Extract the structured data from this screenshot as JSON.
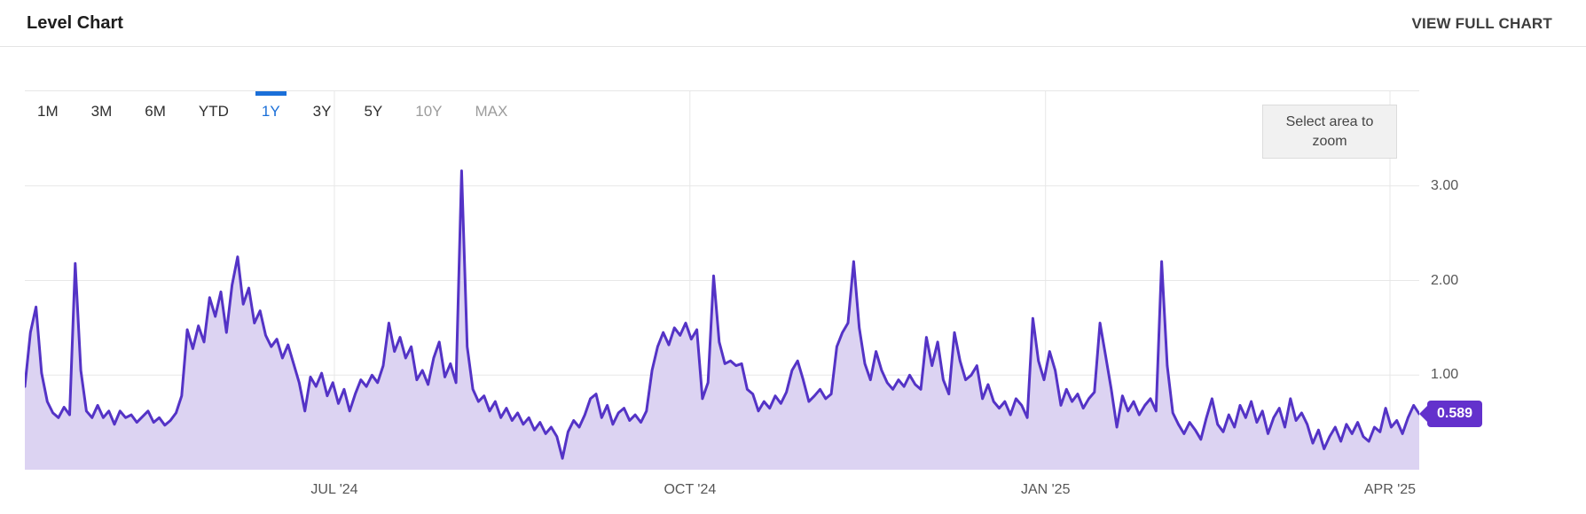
{
  "header": {
    "title": "Level Chart",
    "view_full_chart": "VIEW FULL CHART"
  },
  "chart": {
    "range_buttons": [
      {
        "label": "1M",
        "state": "default"
      },
      {
        "label": "3M",
        "state": "default"
      },
      {
        "label": "6M",
        "state": "default"
      },
      {
        "label": "YTD",
        "state": "default"
      },
      {
        "label": "1Y",
        "state": "active"
      },
      {
        "label": "3Y",
        "state": "default"
      },
      {
        "label": "5Y",
        "state": "default"
      },
      {
        "label": "10Y",
        "state": "disabled"
      },
      {
        "label": "MAX",
        "state": "disabled"
      }
    ],
    "zoom_hint": "Select area to zoom",
    "last_value_label": "0.589",
    "colors": {
      "line": "#5433c6",
      "fill": "#dcd3f2",
      "badge": "#6331cc",
      "active_range": "#1a6fd8",
      "gridline": "#e7e7e7"
    }
  },
  "chart_data": {
    "type": "area",
    "title": "Level Chart",
    "legend": [],
    "grid": true,
    "y_axis": {
      "range": [
        0,
        4
      ],
      "ticks": [
        {
          "label": "3.00",
          "value": 3
        },
        {
          "label": "2.00",
          "value": 2
        },
        {
          "label": "1.00",
          "value": 1
        }
      ]
    },
    "x_axis": {
      "labels": [
        {
          "label": "JUL '24",
          "pos": 0.222
        },
        {
          "label": "OCT '24",
          "pos": 0.477
        },
        {
          "label": "JAN '25",
          "pos": 0.732
        },
        {
          "label": "APR '25",
          "pos": 0.979
        }
      ]
    },
    "last_value": 0.589,
    "values": [
      0.88,
      1.45,
      1.72,
      1.02,
      0.72,
      0.6,
      0.55,
      0.66,
      0.58,
      2.18,
      1.05,
      0.62,
      0.55,
      0.68,
      0.55,
      0.62,
      0.48,
      0.62,
      0.55,
      0.58,
      0.5,
      0.56,
      0.62,
      0.5,
      0.55,
      0.47,
      0.52,
      0.6,
      0.78,
      1.48,
      1.28,
      1.52,
      1.35,
      1.82,
      1.62,
      1.88,
      1.45,
      1.95,
      2.25,
      1.75,
      1.92,
      1.55,
      1.68,
      1.42,
      1.3,
      1.38,
      1.18,
      1.32,
      1.12,
      0.92,
      0.62,
      0.98,
      0.88,
      1.02,
      0.78,
      0.92,
      0.7,
      0.85,
      0.62,
      0.8,
      0.95,
      0.88,
      1.0,
      0.92,
      1.1,
      1.55,
      1.25,
      1.4,
      1.18,
      1.3,
      0.95,
      1.05,
      0.9,
      1.18,
      1.35,
      0.98,
      1.12,
      0.92,
      3.16,
      1.3,
      0.85,
      0.72,
      0.78,
      0.62,
      0.72,
      0.55,
      0.65,
      0.52,
      0.6,
      0.48,
      0.55,
      0.42,
      0.5,
      0.38,
      0.45,
      0.35,
      0.12,
      0.4,
      0.52,
      0.45,
      0.58,
      0.75,
      0.8,
      0.55,
      0.68,
      0.48,
      0.6,
      0.65,
      0.52,
      0.58,
      0.5,
      0.62,
      1.05,
      1.3,
      1.45,
      1.32,
      1.5,
      1.42,
      1.55,
      1.38,
      1.48,
      0.75,
      0.92,
      2.05,
      1.35,
      1.12,
      1.15,
      1.1,
      1.12,
      0.85,
      0.8,
      0.62,
      0.72,
      0.65,
      0.78,
      0.7,
      0.82,
      1.05,
      1.15,
      0.95,
      0.72,
      0.78,
      0.85,
      0.75,
      0.8,
      1.3,
      1.45,
      1.55,
      2.2,
      1.5,
      1.12,
      0.95,
      1.25,
      1.05,
      0.92,
      0.85,
      0.95,
      0.88,
      1.0,
      0.9,
      0.85,
      1.4,
      1.1,
      1.35,
      0.95,
      0.8,
      1.45,
      1.15,
      0.95,
      1.0,
      1.1,
      0.75,
      0.9,
      0.72,
      0.65,
      0.72,
      0.58,
      0.75,
      0.68,
      0.55,
      1.6,
      1.15,
      0.95,
      1.25,
      1.05,
      0.68,
      0.85,
      0.72,
      0.8,
      0.65,
      0.75,
      0.82,
      1.55,
      1.2,
      0.85,
      0.45,
      0.78,
      0.62,
      0.72,
      0.58,
      0.68,
      0.75,
      0.62,
      2.2,
      1.1,
      0.6,
      0.48,
      0.38,
      0.5,
      0.42,
      0.32,
      0.55,
      0.75,
      0.48,
      0.4,
      0.58,
      0.45,
      0.68,
      0.55,
      0.72,
      0.5,
      0.62,
      0.38,
      0.55,
      0.65,
      0.45,
      0.75,
      0.52,
      0.6,
      0.48,
      0.28,
      0.42,
      0.22,
      0.35,
      0.45,
      0.3,
      0.48,
      0.38,
      0.5,
      0.35,
      0.3,
      0.45,
      0.4,
      0.65,
      0.45,
      0.52,
      0.38,
      0.55,
      0.68,
      0.589
    ]
  }
}
